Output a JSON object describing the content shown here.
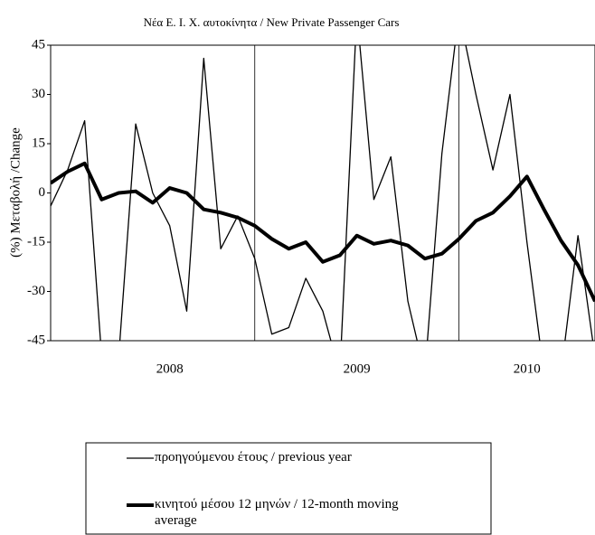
{
  "chart_data": {
    "type": "line",
    "title": "Νέα Ε. Ι. Χ. αυτοκίνητα / New Private Passenger Cars",
    "y_label": "(%) Μεταβολή /Change",
    "categories": [
      null,
      null,
      null,
      null,
      null,
      null,
      null,
      "2008",
      null,
      null,
      null,
      null,
      null,
      null,
      null,
      null,
      null,
      null,
      "2009",
      null,
      null,
      null,
      null,
      null,
      null,
      null,
      null,
      null,
      "2010",
      null,
      null,
      null,
      null
    ],
    "series": [
      {
        "name": "προηγούμενου έτους / previous year",
        "color": "#000000",
        "width": 1.3,
        "values": [
          -4,
          7,
          22,
          -50,
          -50,
          21,
          0,
          -10,
          -36,
          41,
          -17,
          -7,
          -20,
          -43,
          -41,
          -26,
          -36,
          -55,
          55,
          -2,
          11,
          -33,
          -55,
          12,
          55,
          30,
          7,
          30,
          -15,
          -55,
          -55,
          -13,
          -50
        ]
      },
      {
        "name": "κινητού μέσου 12 μηνών / 12-month moving average",
        "color": "#000000",
        "width": 4,
        "values": [
          3,
          6.5,
          9,
          -2,
          0,
          0.5,
          -3,
          1.5,
          0,
          -5,
          -6,
          -7.5,
          -10,
          -14,
          -17,
          -15,
          -21,
          -19,
          -13,
          -15.5,
          -14.5,
          -16,
          -20,
          -18.5,
          -14,
          -8.5,
          -6,
          -1,
          5,
          -5,
          -14.5,
          -22,
          -33
        ]
      }
    ],
    "ylim": [
      -45,
      45
    ],
    "yticks": [
      45,
      30,
      15,
      0,
      -15,
      -30,
      -45
    ]
  }
}
